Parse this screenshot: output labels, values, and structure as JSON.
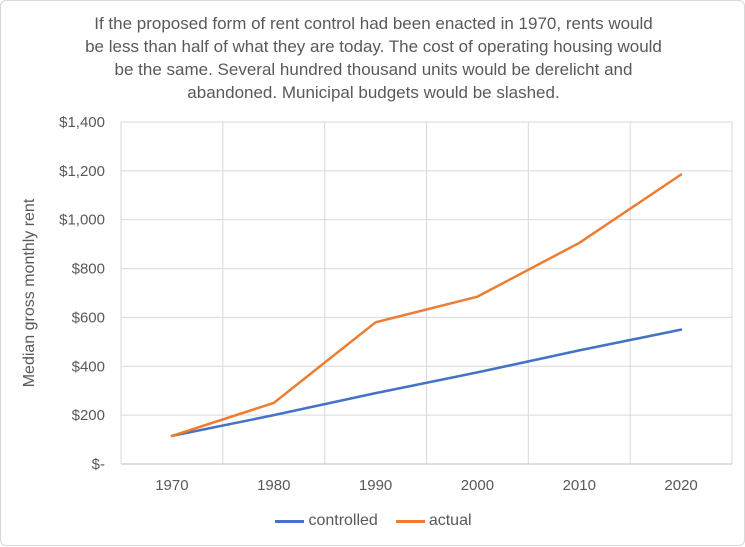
{
  "chart": {
    "title_lines": [
      "If the proposed form of rent control had been enacted in 1970, rents would",
      "be less than half of what they are today. The cost of operating housing would",
      "be the same. Several hundred thousand units would be derelicht and",
      "abandoned. Municipal budgets would be slashed."
    ]
  },
  "chart_data": {
    "type": "line",
    "title": "If the proposed form of rent control had been enacted in 1970, rents would be less than half of what they are today. The cost of operating housing would be the same. Several hundred thousand units would be derelicht and abandoned. Municipal budgets would be slashed.",
    "categories": [
      "1970",
      "1980",
      "1990",
      "2000",
      "2010",
      "2020"
    ],
    "series": [
      {
        "name": "controlled",
        "color": "#4472C4",
        "values": [
          115,
          200,
          290,
          375,
          465,
          550
        ]
      },
      {
        "name": "actual",
        "color": "#ED7D31",
        "values": [
          115,
          250,
          580,
          685,
          905,
          1185
        ]
      }
    ],
    "xlabel": "",
    "ylabel": "Median gross monthly rent",
    "ylim": [
      0,
      1400
    ],
    "y_tick_step": 200,
    "y_tick_labels": [
      "$-",
      "$200",
      "$400",
      "$600",
      "$800",
      "$1,000",
      "$1,200",
      "$1,400"
    ],
    "grid": true,
    "legend_position": "bottom"
  },
  "colors": {
    "axis_text": "#595959",
    "title_text": "#595959",
    "gridline": "#D9D9D9",
    "axis_line": "#BFBFBF",
    "series_blue": "#4472C4",
    "series_orange": "#ED7D31",
    "background": "#FFFFFF",
    "border": "#D9D9D9"
  }
}
